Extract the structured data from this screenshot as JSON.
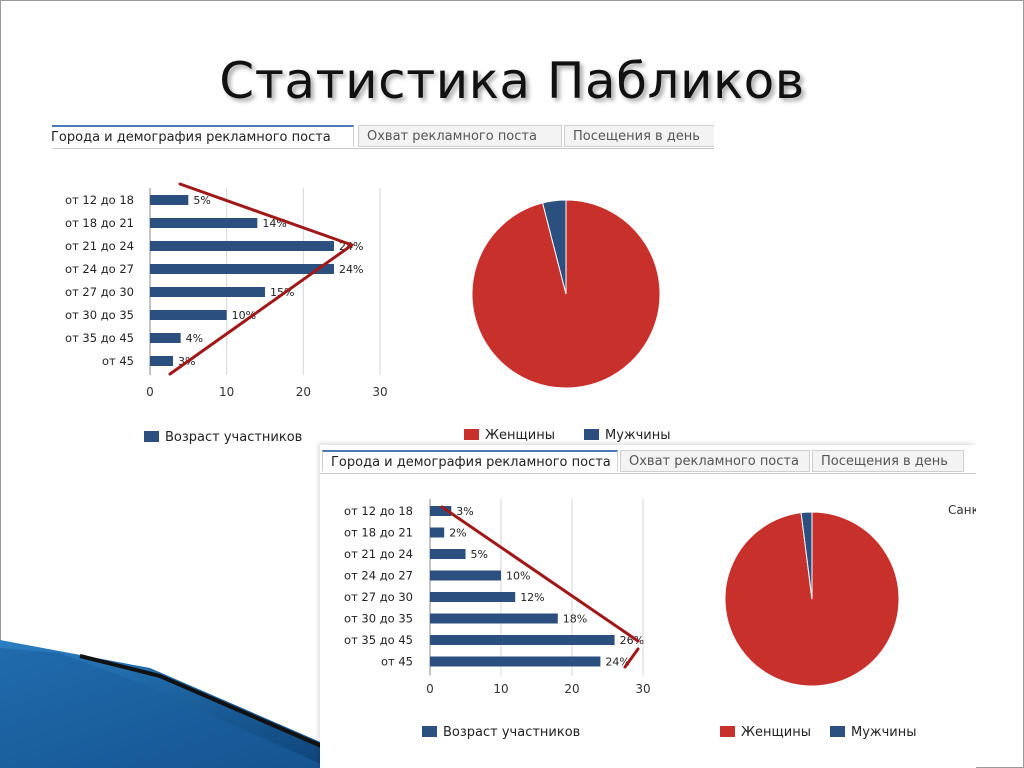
{
  "slide": {
    "title": "Статистика Пабликов"
  },
  "colors": {
    "bar": "#2b4f7e",
    "women": "#c8302b",
    "men": "#2b4f7e",
    "trend_line": "#a01818",
    "grid": "#d6d6d6"
  },
  "panels": [
    {
      "tabs": [
        "Города и демография рекламного поста",
        "Охват рекламного поста",
        "Посещения в день"
      ],
      "legend": {
        "bar_series": "Возраст участников",
        "pie_women": "Женщины",
        "pie_men": "Мужчины"
      },
      "cut_label": "",
      "chart_data": {
        "type": "bar",
        "orientation": "horizontal",
        "categories": [
          "от 12 до 18",
          "от 18 до 21",
          "от 21 до 24",
          "от 24 до 27",
          "от 27 до 30",
          "от 30 до 35",
          "от 35 до 45",
          "от 45"
        ],
        "values": [
          5,
          14,
          24,
          24,
          15,
          10,
          4,
          3
        ],
        "labels": [
          "5%",
          "14%",
          "24%",
          "24%",
          "15%",
          "10%",
          "4%",
          "3%"
        ],
        "series": [
          {
            "name": "Возраст участников",
            "values": [
              5,
              14,
              24,
              24,
              15,
              10,
              4,
              3
            ]
          }
        ],
        "xlim": [
          0,
          30
        ],
        "xticks": [
          "0",
          "10",
          "20",
          "30"
        ],
        "grid": true,
        "legend_position": "bottom-left"
      },
      "pie_data": {
        "type": "pie",
        "slices": [
          {
            "name": "Женщины",
            "value": 96
          },
          {
            "name": "Мужчины",
            "value": 4
          }
        ]
      }
    },
    {
      "tabs": [
        "Города и демография рекламного поста",
        "Охват рекламного поста",
        "Посещения в день"
      ],
      "legend": {
        "bar_series": "Возраст участников",
        "pie_women": "Женщины",
        "pie_men": "Мужчины"
      },
      "cut_label": "Санк",
      "chart_data": {
        "type": "bar",
        "orientation": "horizontal",
        "categories": [
          "от 12 до 18",
          "от 18 до 21",
          "от 21 до 24",
          "от 24 до 27",
          "от 27 до 30",
          "от 30 до 35",
          "от 35 до 45",
          "от 45"
        ],
        "values": [
          3,
          2,
          5,
          10,
          12,
          18,
          26,
          24
        ],
        "labels": [
          "3%",
          "2%",
          "5%",
          "10%",
          "12%",
          "18%",
          "26%",
          "24%"
        ],
        "series": [
          {
            "name": "Возраст участников",
            "values": [
              3,
              2,
              5,
              10,
              12,
              18,
              26,
              24
            ]
          }
        ],
        "xlim": [
          0,
          30
        ],
        "xticks": [
          "0",
          "10",
          "20",
          "30"
        ],
        "grid": true,
        "legend_position": "bottom-left"
      },
      "pie_data": {
        "type": "pie",
        "slices": [
          {
            "name": "Женщины",
            "value": 98
          },
          {
            "name": "Мужчины",
            "value": 2
          }
        ]
      }
    }
  ]
}
